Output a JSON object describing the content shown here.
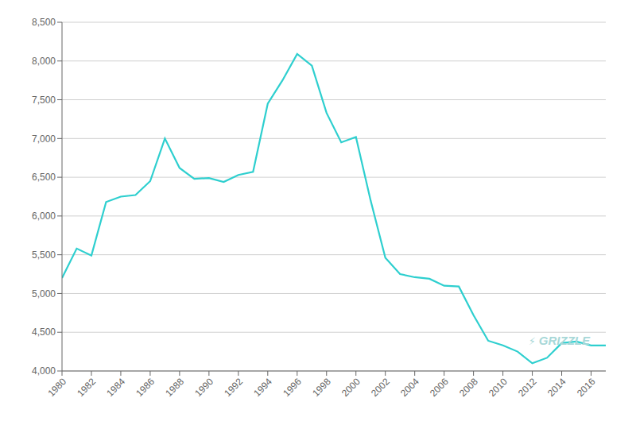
{
  "chart_data": {
    "type": "line",
    "x": [
      1980,
      1981,
      1982,
      1983,
      1984,
      1985,
      1986,
      1987,
      1988,
      1989,
      1990,
      1991,
      1992,
      1993,
      1994,
      1995,
      1996,
      1997,
      1998,
      1999,
      2000,
      2001,
      2002,
      2003,
      2004,
      2005,
      2006,
      2007,
      2008,
      2009,
      2010,
      2011,
      2012,
      2013,
      2014,
      2015,
      2016,
      2017
    ],
    "values": [
      5200,
      5580,
      5490,
      6180,
      6250,
      6270,
      6450,
      7000,
      6620,
      6480,
      6490,
      6440,
      6530,
      6570,
      7450,
      7750,
      8090,
      7940,
      7330,
      6950,
      7020,
      6200,
      5460,
      5250,
      5210,
      5190,
      5100,
      5090,
      4720,
      4390,
      4330,
      4250,
      4100,
      4170,
      4360,
      4380,
      4330,
      4330
    ],
    "color": "#2ECFCF",
    "xlim": [
      1980,
      2017
    ],
    "ylim": [
      4000,
      8500
    ],
    "xticks": [
      1980,
      1982,
      1984,
      1986,
      1988,
      1990,
      1992,
      1994,
      1996,
      1998,
      2000,
      2002,
      2004,
      2006,
      2008,
      2010,
      2012,
      2014,
      2016
    ],
    "yticks": [
      {
        "value": 4000,
        "label": "4,000"
      },
      {
        "value": 4500,
        "label": "4,500"
      },
      {
        "value": 5000,
        "label": "5,000"
      },
      {
        "value": 5500,
        "label": "5,500"
      },
      {
        "value": 6000,
        "label": "6,000"
      },
      {
        "value": 6500,
        "label": "6,500"
      },
      {
        "value": 7000,
        "label": "7,000"
      },
      {
        "value": 7500,
        "label": "7,500"
      },
      {
        "value": 8000,
        "label": "8,000"
      },
      {
        "value": 8500,
        "label": "8,500"
      }
    ],
    "grid": true,
    "annotations": [
      {
        "text": "⚡",
        "color": "#a8d8d8"
      },
      {
        "text": "GRIZZLE",
        "color": "#a8d8d8"
      }
    ]
  }
}
